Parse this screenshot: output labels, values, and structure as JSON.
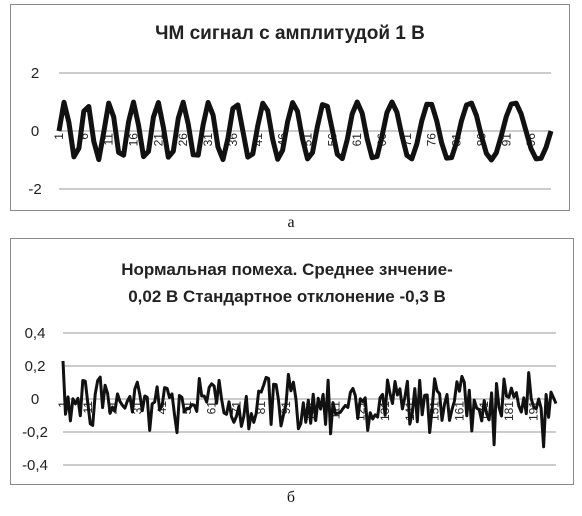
{
  "chart_data": [
    {
      "type": "line",
      "title": "ЧМ сигнал с амплитудой 1 В",
      "ylim": [
        -2,
        2
      ],
      "yticks": [
        "2",
        "0",
        "-2"
      ],
      "xtick_labels": [
        "1",
        "6",
        "11",
        "16",
        "21",
        "26",
        "31",
        "36",
        "41",
        "46",
        "51",
        "56",
        "61",
        "66",
        "71",
        "76",
        "81",
        "86",
        "91",
        "96"
      ],
      "x_range": [
        1,
        100
      ],
      "amplitude": 1,
      "cycles": 17,
      "grid": true,
      "legend": "none",
      "series": [
        {
          "values": []
        }
      ]
    },
    {
      "type": "line",
      "title": "Нормальная помеха. Среднее знчение-0,02 В Стандартное отклонение -0,3 В",
      "title_lines": [
        "Нормальная помеха. Среднее знчение-",
        "0,02 В Стандартное отклонение -0,3 В"
      ],
      "ylim": [
        -0.4,
        0.4
      ],
      "yticks": [
        "0,4",
        "0,2",
        "0",
        "-0,2",
        "-0,4"
      ],
      "xtick_labels": [
        "1",
        "11",
        "21",
        "31",
        "41",
        "51",
        "61",
        "71",
        "81",
        "91",
        "101",
        "111",
        "121",
        "131",
        "141",
        "151",
        "161",
        "171",
        "181",
        "191"
      ],
      "x_range": [
        1,
        200
      ],
      "mean": -0.02,
      "std": 0.3,
      "grid": true,
      "legend": "none",
      "series": [
        {
          "values": []
        }
      ]
    }
  ],
  "captions": {
    "a": "а",
    "b": "б"
  }
}
